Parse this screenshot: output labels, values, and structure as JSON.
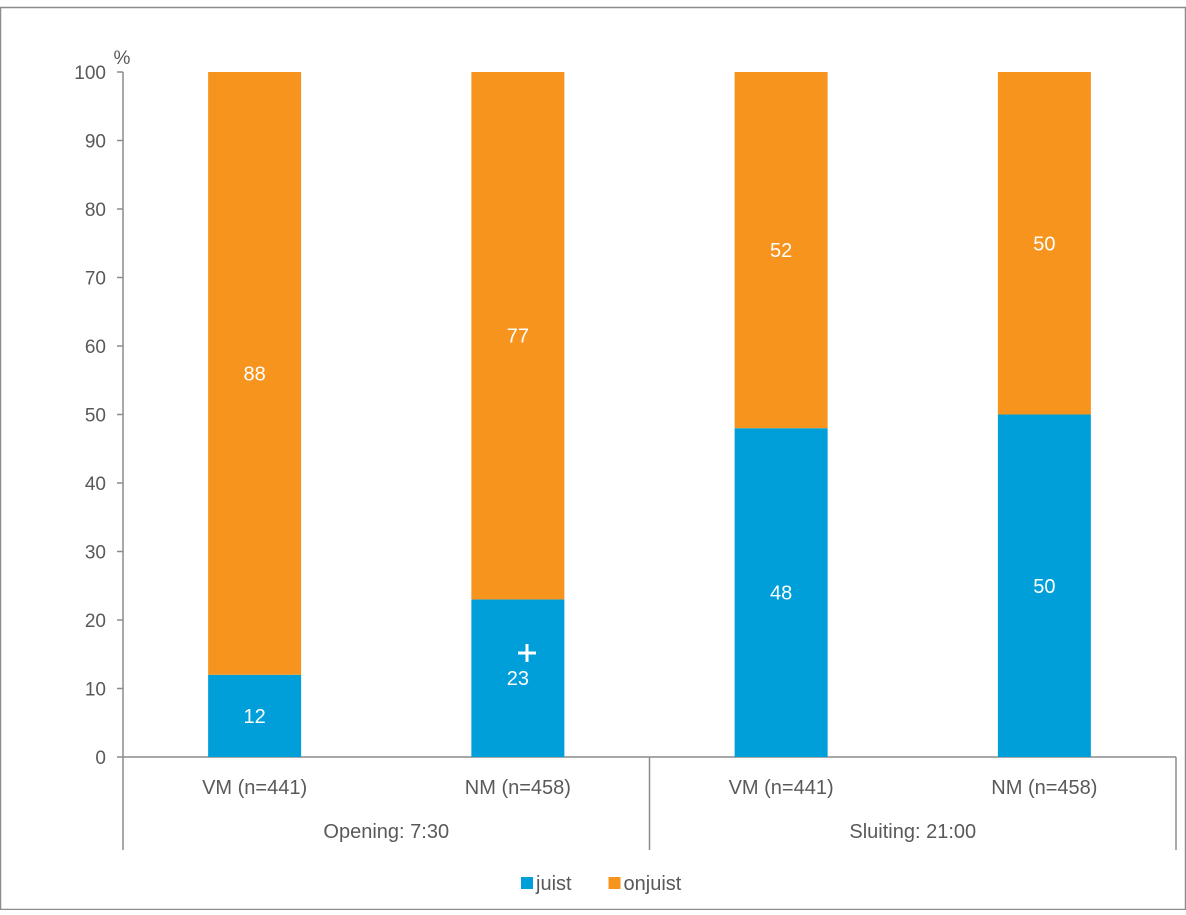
{
  "chart_data": {
    "type": "bar",
    "stacked": true,
    "percent_label": "%",
    "categories": [
      "VM (n=441)",
      "NM (n=458)",
      "VM (n=441)",
      "NM (n=458)"
    ],
    "groups": [
      {
        "label": "Opening: 7:30",
        "categories": [
          0,
          1
        ]
      },
      {
        "label": "Sluiting: 21:00",
        "categories": [
          2,
          3
        ]
      }
    ],
    "series": [
      {
        "name": "juist",
        "color": "#009fda",
        "values": [
          12,
          23,
          48,
          50
        ]
      },
      {
        "name": "onjuist",
        "color": "#f7941d",
        "values": [
          88,
          77,
          52,
          50
        ]
      }
    ],
    "ylim": [
      0,
      100
    ],
    "yticks": [
      0,
      10,
      20,
      30,
      40,
      50,
      60,
      70,
      80,
      90,
      100
    ],
    "grid": false,
    "legend_position": "bottom"
  }
}
